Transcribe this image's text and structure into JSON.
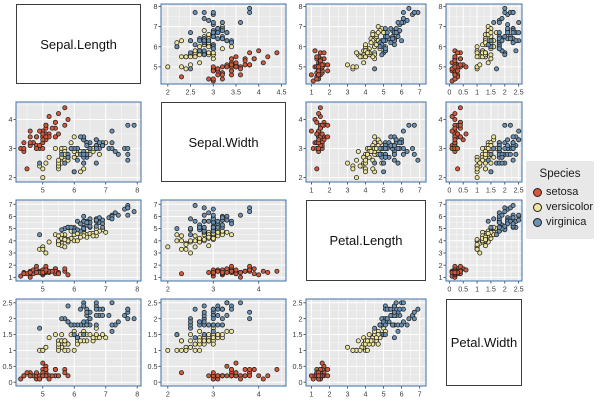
{
  "legend": {
    "title": "Species",
    "items": [
      {
        "key": "setosa",
        "label": "setosa"
      },
      {
        "key": "versicolor",
        "label": "versicolor"
      },
      {
        "key": "virginica",
        "label": "virginica"
      }
    ]
  },
  "chart_data": {
    "type": "scatter-matrix",
    "variables": [
      "Sepal.Length",
      "Sepal.Width",
      "Petal.Length",
      "Petal.Width"
    ],
    "species_order": [
      "setosa",
      "versicolor",
      "virginica"
    ],
    "colors": {
      "setosa": "#D2593B",
      "versicolor": "#EFE79F",
      "virginica": "#6B92B4"
    },
    "style": {
      "panel_bg": "#E8E8E8",
      "grid_color": "#FFFFFF",
      "panel_border": "#4170A8",
      "point_stroke": "#1F1F1F",
      "tick_color": "#333333",
      "tick_label_color": "#3A3A3A"
    },
    "axes": {
      "Sepal.Length": {
        "domain": [
          4.15,
          8.12
        ]
      },
      "Sepal.Width": {
        "domain": [
          1.85,
          4.6
        ]
      },
      "Petal.Length": {
        "domain": [
          0.7,
          7.35
        ]
      },
      "Petal.Width": {
        "domain": [
          -0.12,
          2.62
        ]
      }
    },
    "panels": [
      {
        "kind": "label",
        "text": "Sepal.Length"
      },
      {
        "kind": "scatter",
        "x": "Sepal.Width",
        "y": "Sepal.Length",
        "xticks": [
          2,
          2.5,
          3,
          3.5,
          4,
          4.5
        ],
        "yticks": [
          5,
          6,
          7,
          8
        ]
      },
      {
        "kind": "scatter",
        "x": "Petal.Length",
        "y": "Sepal.Length",
        "xticks": [
          1,
          2,
          3,
          4,
          5,
          6,
          7
        ],
        "yticks": [
          5,
          6,
          7,
          8
        ]
      },
      {
        "kind": "scatter",
        "x": "Petal.Width",
        "y": "Sepal.Length",
        "xticks": [
          0,
          0.5,
          1,
          1.5,
          2,
          2.5
        ],
        "yticks": [
          5,
          6,
          7,
          8
        ]
      },
      {
        "kind": "scatter",
        "x": "Sepal.Length",
        "y": "Sepal.Width",
        "xticks": [
          5,
          6,
          7,
          8
        ],
        "yticks": [
          2,
          3,
          4
        ]
      },
      {
        "kind": "label",
        "text": "Sepal.Width"
      },
      {
        "kind": "scatter",
        "x": "Petal.Length",
        "y": "Sepal.Width",
        "xticks": [
          1,
          2,
          3,
          4,
          5,
          6,
          7
        ],
        "yticks": [
          2,
          3,
          4
        ]
      },
      {
        "kind": "scatter",
        "x": "Petal.Width",
        "y": "Sepal.Width",
        "xticks": [
          0,
          0.5,
          1,
          1.5,
          2,
          2.5
        ],
        "yticks": [
          2,
          3,
          4
        ]
      },
      {
        "kind": "scatter",
        "x": "Sepal.Length",
        "y": "Petal.Length",
        "xticks": [
          5,
          6,
          7,
          8
        ],
        "yticks": [
          1,
          2,
          3,
          4,
          5,
          6,
          7
        ]
      },
      {
        "kind": "scatter",
        "x": "Sepal.Width",
        "y": "Petal.Length",
        "xticks": [
          2,
          3,
          4
        ],
        "yticks": [
          1,
          2,
          3,
          4,
          5,
          6,
          7
        ]
      },
      {
        "kind": "label",
        "text": "Petal.Length"
      },
      {
        "kind": "scatter",
        "x": "Petal.Width",
        "y": "Petal.Length",
        "xticks": [
          0,
          0.5,
          1,
          1.5,
          2,
          2.5
        ],
        "yticks": [
          1,
          2,
          3,
          4,
          5,
          6,
          7
        ]
      },
      {
        "kind": "scatter",
        "x": "Sepal.Length",
        "y": "Petal.Width",
        "xticks": [
          5,
          6,
          7,
          8
        ],
        "yticks": [
          0,
          0.5,
          1,
          1.5,
          2,
          2.5
        ]
      },
      {
        "kind": "scatter",
        "x": "Sepal.Width",
        "y": "Petal.Width",
        "xticks": [
          2,
          3,
          4
        ],
        "yticks": [
          0,
          0.5,
          1,
          1.5,
          2,
          2.5
        ]
      },
      {
        "kind": "scatter",
        "x": "Petal.Length",
        "y": "Petal.Width",
        "xticks": [
          1,
          2,
          3,
          4,
          5,
          6,
          7
        ],
        "yticks": [
          0,
          0.5,
          1,
          1.5,
          2,
          2.5
        ]
      },
      {
        "kind": "label",
        "text": "Petal.Width"
      }
    ],
    "rows": [
      [
        5.1,
        3.5,
        1.4,
        0.2,
        0
      ],
      [
        4.9,
        3.0,
        1.4,
        0.2,
        0
      ],
      [
        4.7,
        3.2,
        1.3,
        0.2,
        0
      ],
      [
        4.6,
        3.1,
        1.5,
        0.2,
        0
      ],
      [
        5.0,
        3.6,
        1.4,
        0.2,
        0
      ],
      [
        5.4,
        3.9,
        1.7,
        0.4,
        0
      ],
      [
        4.6,
        3.4,
        1.4,
        0.3,
        0
      ],
      [
        5.0,
        3.4,
        1.5,
        0.2,
        0
      ],
      [
        4.4,
        2.9,
        1.4,
        0.2,
        0
      ],
      [
        4.9,
        3.1,
        1.5,
        0.1,
        0
      ],
      [
        5.4,
        3.7,
        1.5,
        0.2,
        0
      ],
      [
        4.8,
        3.4,
        1.6,
        0.2,
        0
      ],
      [
        4.8,
        3.0,
        1.4,
        0.1,
        0
      ],
      [
        4.3,
        3.0,
        1.1,
        0.1,
        0
      ],
      [
        5.8,
        4.0,
        1.2,
        0.2,
        0
      ],
      [
        5.7,
        4.4,
        1.5,
        0.4,
        0
      ],
      [
        5.4,
        3.9,
        1.3,
        0.4,
        0
      ],
      [
        5.1,
        3.5,
        1.4,
        0.3,
        0
      ],
      [
        5.7,
        3.8,
        1.7,
        0.3,
        0
      ],
      [
        5.1,
        3.8,
        1.5,
        0.3,
        0
      ],
      [
        5.4,
        3.4,
        1.7,
        0.2,
        0
      ],
      [
        5.1,
        3.7,
        1.5,
        0.4,
        0
      ],
      [
        4.6,
        3.6,
        1.0,
        0.2,
        0
      ],
      [
        5.1,
        3.3,
        1.7,
        0.5,
        0
      ],
      [
        4.8,
        3.4,
        1.9,
        0.2,
        0
      ],
      [
        5.0,
        3.0,
        1.6,
        0.2,
        0
      ],
      [
        5.0,
        3.4,
        1.6,
        0.4,
        0
      ],
      [
        5.2,
        3.5,
        1.5,
        0.2,
        0
      ],
      [
        5.2,
        3.4,
        1.4,
        0.2,
        0
      ],
      [
        4.7,
        3.2,
        1.6,
        0.2,
        0
      ],
      [
        4.8,
        3.1,
        1.6,
        0.2,
        0
      ],
      [
        5.4,
        3.4,
        1.5,
        0.4,
        0
      ],
      [
        5.2,
        4.1,
        1.5,
        0.1,
        0
      ],
      [
        5.5,
        4.2,
        1.4,
        0.2,
        0
      ],
      [
        4.9,
        3.1,
        1.5,
        0.2,
        0
      ],
      [
        5.0,
        3.2,
        1.2,
        0.2,
        0
      ],
      [
        5.5,
        3.5,
        1.3,
        0.2,
        0
      ],
      [
        4.9,
        3.6,
        1.4,
        0.1,
        0
      ],
      [
        4.4,
        3.0,
        1.3,
        0.2,
        0
      ],
      [
        5.1,
        3.4,
        1.5,
        0.2,
        0
      ],
      [
        5.0,
        3.5,
        1.3,
        0.3,
        0
      ],
      [
        4.5,
        2.3,
        1.3,
        0.3,
        0
      ],
      [
        4.4,
        3.2,
        1.3,
        0.2,
        0
      ],
      [
        5.0,
        3.5,
        1.6,
        0.6,
        0
      ],
      [
        5.1,
        3.8,
        1.9,
        0.4,
        0
      ],
      [
        4.8,
        3.0,
        1.4,
        0.3,
        0
      ],
      [
        5.1,
        3.8,
        1.6,
        0.2,
        0
      ],
      [
        4.6,
        3.2,
        1.4,
        0.2,
        0
      ],
      [
        5.3,
        3.7,
        1.5,
        0.2,
        0
      ],
      [
        5.0,
        3.3,
        1.4,
        0.2,
        0
      ],
      [
        7.0,
        3.2,
        4.7,
        1.4,
        1
      ],
      [
        6.4,
        3.2,
        4.5,
        1.5,
        1
      ],
      [
        6.9,
        3.1,
        4.9,
        1.5,
        1
      ],
      [
        5.5,
        2.3,
        4.0,
        1.3,
        1
      ],
      [
        6.5,
        2.8,
        4.6,
        1.5,
        1
      ],
      [
        5.7,
        2.8,
        4.5,
        1.3,
        1
      ],
      [
        6.3,
        3.3,
        4.7,
        1.6,
        1
      ],
      [
        4.9,
        2.4,
        3.3,
        1.0,
        1
      ],
      [
        6.6,
        2.9,
        4.6,
        1.3,
        1
      ],
      [
        5.2,
        2.7,
        3.9,
        1.4,
        1
      ],
      [
        5.0,
        2.0,
        3.5,
        1.0,
        1
      ],
      [
        5.9,
        3.0,
        4.2,
        1.5,
        1
      ],
      [
        6.0,
        2.2,
        4.0,
        1.0,
        1
      ],
      [
        6.1,
        2.9,
        4.7,
        1.4,
        1
      ],
      [
        5.6,
        2.9,
        3.6,
        1.3,
        1
      ],
      [
        6.7,
        3.1,
        4.4,
        1.4,
        1
      ],
      [
        5.6,
        3.0,
        4.5,
        1.5,
        1
      ],
      [
        5.8,
        2.7,
        4.1,
        1.0,
        1
      ],
      [
        6.2,
        2.2,
        4.5,
        1.5,
        1
      ],
      [
        5.6,
        2.5,
        3.9,
        1.1,
        1
      ],
      [
        5.9,
        3.2,
        4.8,
        1.8,
        1
      ],
      [
        6.1,
        2.8,
        4.0,
        1.3,
        1
      ],
      [
        6.3,
        2.5,
        4.9,
        1.5,
        1
      ],
      [
        6.1,
        2.8,
        4.7,
        1.2,
        1
      ],
      [
        6.4,
        2.9,
        4.3,
        1.3,
        1
      ],
      [
        6.6,
        3.0,
        4.4,
        1.4,
        1
      ],
      [
        6.8,
        2.8,
        4.8,
        1.4,
        1
      ],
      [
        6.7,
        3.0,
        5.0,
        1.7,
        1
      ],
      [
        6.0,
        2.9,
        4.5,
        1.5,
        1
      ],
      [
        5.7,
        2.6,
        3.5,
        1.0,
        1
      ],
      [
        5.5,
        2.4,
        3.8,
        1.1,
        1
      ],
      [
        5.5,
        2.4,
        3.7,
        1.0,
        1
      ],
      [
        5.8,
        2.7,
        3.9,
        1.2,
        1
      ],
      [
        6.0,
        2.7,
        5.1,
        1.6,
        1
      ],
      [
        5.4,
        3.0,
        4.5,
        1.5,
        1
      ],
      [
        6.0,
        3.4,
        4.5,
        1.6,
        1
      ],
      [
        6.7,
        3.1,
        4.7,
        1.5,
        1
      ],
      [
        6.3,
        2.3,
        4.4,
        1.3,
        1
      ],
      [
        5.6,
        3.0,
        4.1,
        1.3,
        1
      ],
      [
        5.5,
        2.5,
        4.0,
        1.3,
        1
      ],
      [
        5.5,
        2.6,
        4.4,
        1.2,
        1
      ],
      [
        6.1,
        3.0,
        4.6,
        1.4,
        1
      ],
      [
        5.8,
        2.6,
        4.0,
        1.2,
        1
      ],
      [
        5.0,
        2.3,
        3.3,
        1.0,
        1
      ],
      [
        5.6,
        2.7,
        4.2,
        1.3,
        1
      ],
      [
        5.7,
        3.0,
        4.2,
        1.2,
        1
      ],
      [
        5.7,
        2.9,
        4.2,
        1.3,
        1
      ],
      [
        6.2,
        2.9,
        4.3,
        1.3,
        1
      ],
      [
        5.1,
        2.5,
        3.0,
        1.1,
        1
      ],
      [
        5.7,
        2.8,
        4.1,
        1.3,
        1
      ],
      [
        6.3,
        3.3,
        6.0,
        2.5,
        2
      ],
      [
        5.8,
        2.7,
        5.1,
        1.9,
        2
      ],
      [
        7.1,
        3.0,
        5.9,
        2.1,
        2
      ],
      [
        6.3,
        2.9,
        5.6,
        1.8,
        2
      ],
      [
        6.5,
        3.0,
        5.8,
        2.2,
        2
      ],
      [
        7.6,
        3.0,
        6.6,
        2.1,
        2
      ],
      [
        4.9,
        2.5,
        4.5,
        1.7,
        2
      ],
      [
        7.3,
        2.9,
        6.3,
        1.8,
        2
      ],
      [
        6.7,
        2.5,
        5.8,
        1.8,
        2
      ],
      [
        7.2,
        3.6,
        6.1,
        2.5,
        2
      ],
      [
        6.5,
        3.2,
        5.1,
        2.0,
        2
      ],
      [
        6.4,
        2.7,
        5.3,
        1.9,
        2
      ],
      [
        6.8,
        3.0,
        5.5,
        2.1,
        2
      ],
      [
        5.7,
        2.5,
        5.0,
        2.0,
        2
      ],
      [
        5.8,
        2.8,
        5.1,
        2.4,
        2
      ],
      [
        6.4,
        3.2,
        5.3,
        2.3,
        2
      ],
      [
        6.5,
        3.0,
        5.5,
        1.8,
        2
      ],
      [
        7.7,
        3.8,
        6.7,
        2.2,
        2
      ],
      [
        7.7,
        2.6,
        6.9,
        2.3,
        2
      ],
      [
        6.0,
        2.2,
        5.0,
        1.5,
        2
      ],
      [
        6.9,
        3.2,
        5.7,
        2.3,
        2
      ],
      [
        5.6,
        2.8,
        4.9,
        2.0,
        2
      ],
      [
        7.7,
        2.8,
        6.7,
        2.0,
        2
      ],
      [
        6.3,
        2.7,
        4.9,
        1.8,
        2
      ],
      [
        6.7,
        3.3,
        5.7,
        2.1,
        2
      ],
      [
        7.2,
        3.2,
        6.0,
        1.8,
        2
      ],
      [
        6.2,
        2.8,
        4.8,
        1.8,
        2
      ],
      [
        6.1,
        3.0,
        4.9,
        1.8,
        2
      ],
      [
        6.4,
        2.8,
        5.6,
        2.1,
        2
      ],
      [
        7.2,
        3.0,
        5.8,
        1.6,
        2
      ],
      [
        7.4,
        2.8,
        6.1,
        1.9,
        2
      ],
      [
        7.9,
        3.8,
        6.4,
        2.0,
        2
      ],
      [
        6.4,
        2.8,
        5.6,
        2.2,
        2
      ],
      [
        6.3,
        2.8,
        5.1,
        1.5,
        2
      ],
      [
        6.1,
        2.6,
        5.6,
        1.4,
        2
      ],
      [
        7.7,
        3.0,
        6.1,
        2.3,
        2
      ],
      [
        6.3,
        3.4,
        5.6,
        2.4,
        2
      ],
      [
        6.4,
        3.1,
        5.5,
        1.8,
        2
      ],
      [
        6.0,
        3.0,
        4.8,
        1.8,
        2
      ],
      [
        6.9,
        3.1,
        5.4,
        2.1,
        2
      ],
      [
        6.7,
        3.1,
        5.6,
        2.4,
        2
      ],
      [
        6.9,
        3.1,
        5.1,
        2.3,
        2
      ],
      [
        5.8,
        2.7,
        5.1,
        1.9,
        2
      ],
      [
        6.8,
        3.2,
        5.9,
        2.3,
        2
      ],
      [
        6.7,
        3.3,
        5.7,
        2.5,
        2
      ],
      [
        6.7,
        3.0,
        5.2,
        2.3,
        2
      ],
      [
        6.3,
        2.5,
        5.0,
        1.9,
        2
      ],
      [
        6.5,
        3.0,
        5.2,
        2.0,
        2
      ],
      [
        6.2,
        3.4,
        5.4,
        2.3,
        2
      ],
      [
        5.9,
        3.0,
        5.1,
        1.8,
        2
      ]
    ]
  }
}
